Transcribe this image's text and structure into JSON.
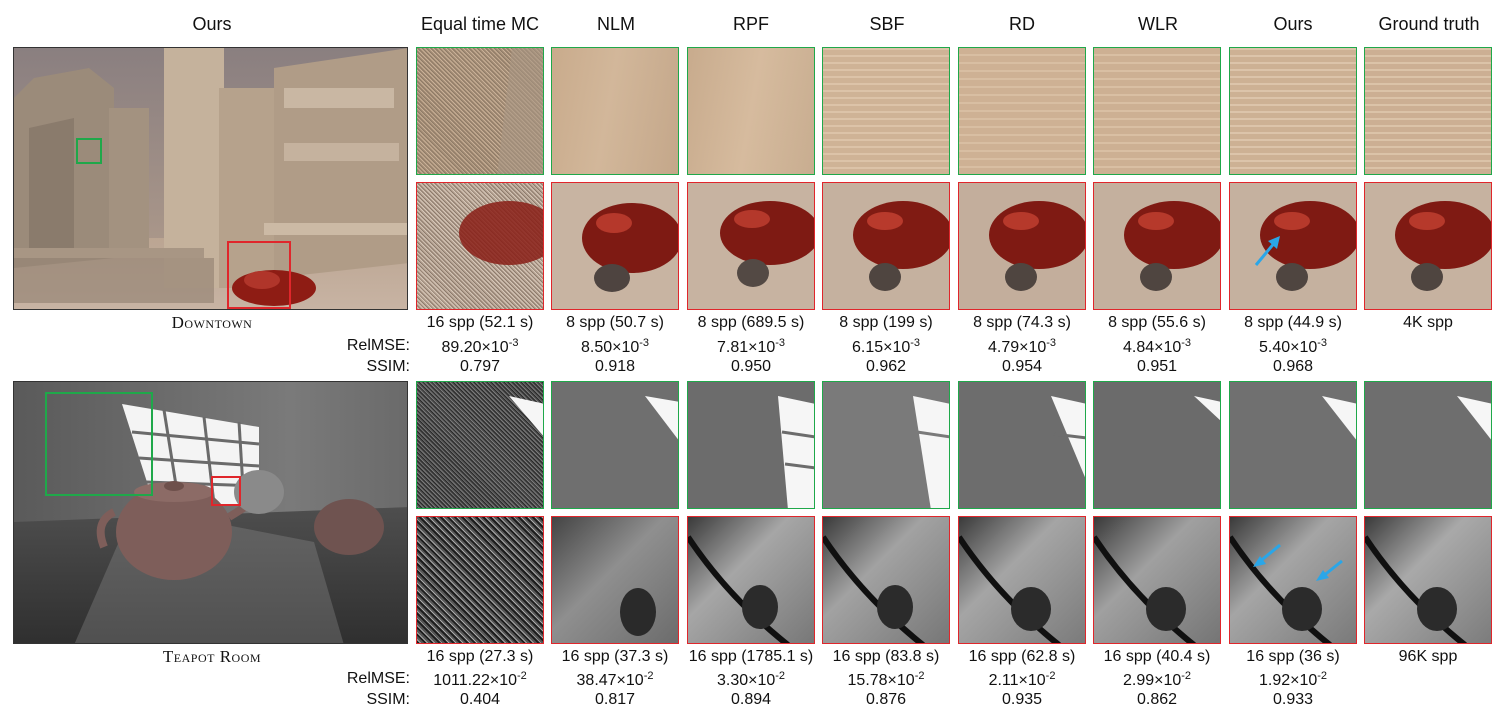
{
  "header": {
    "ours_overview": "Ours",
    "methods": [
      "Equal time MC",
      "NLM",
      "RPF",
      "SBF",
      "RD",
      "WLR",
      "Ours",
      "Ground truth"
    ]
  },
  "labels": {
    "relmse": "RelMSE:",
    "ssim": "SSIM:"
  },
  "scenes": [
    {
      "name": "Downtown",
      "spp": [
        "16 spp (52.1 s)",
        "8 spp (50.7 s)",
        "8 spp (689.5 s)",
        "8 spp (199 s)",
        "8 spp (74.3 s)",
        "8 spp (55.6 s)",
        "8 spp (44.9 s)",
        "4K spp"
      ],
      "relmse": [
        "89.20×10",
        "8.50×10",
        "7.81×10",
        "6.15×10",
        "4.79×10",
        "4.84×10",
        "5.40×10",
        ""
      ],
      "relmse_exp": "-3",
      "ssim": [
        "0.797",
        "0.918",
        "0.950",
        "0.962",
        "0.954",
        "0.951",
        "0.968",
        ""
      ]
    },
    {
      "name": "Teapot Room",
      "spp": [
        "16 spp (27.3 s)",
        "16 spp (37.3 s)",
        "16 spp (1785.1 s)",
        "16 spp (83.8 s)",
        "16 spp (62.8 s)",
        "16 spp (40.4 s)",
        "16 spp (36 s)",
        "96K spp"
      ],
      "relmse": [
        "1011.22×10",
        "38.47×10",
        "3.30×10",
        "15.78×10",
        "2.11×10",
        "2.99×10",
        "1.92×10",
        ""
      ],
      "relmse_exp": "-2",
      "ssim": [
        "0.404",
        "0.817",
        "0.894",
        "0.876",
        "0.935",
        "0.862",
        "0.933",
        ""
      ]
    }
  ],
  "colors": {
    "inset_green": "#1fa84a",
    "inset_red": "#e0262b",
    "arrow_blue": "#2aa6e8"
  }
}
